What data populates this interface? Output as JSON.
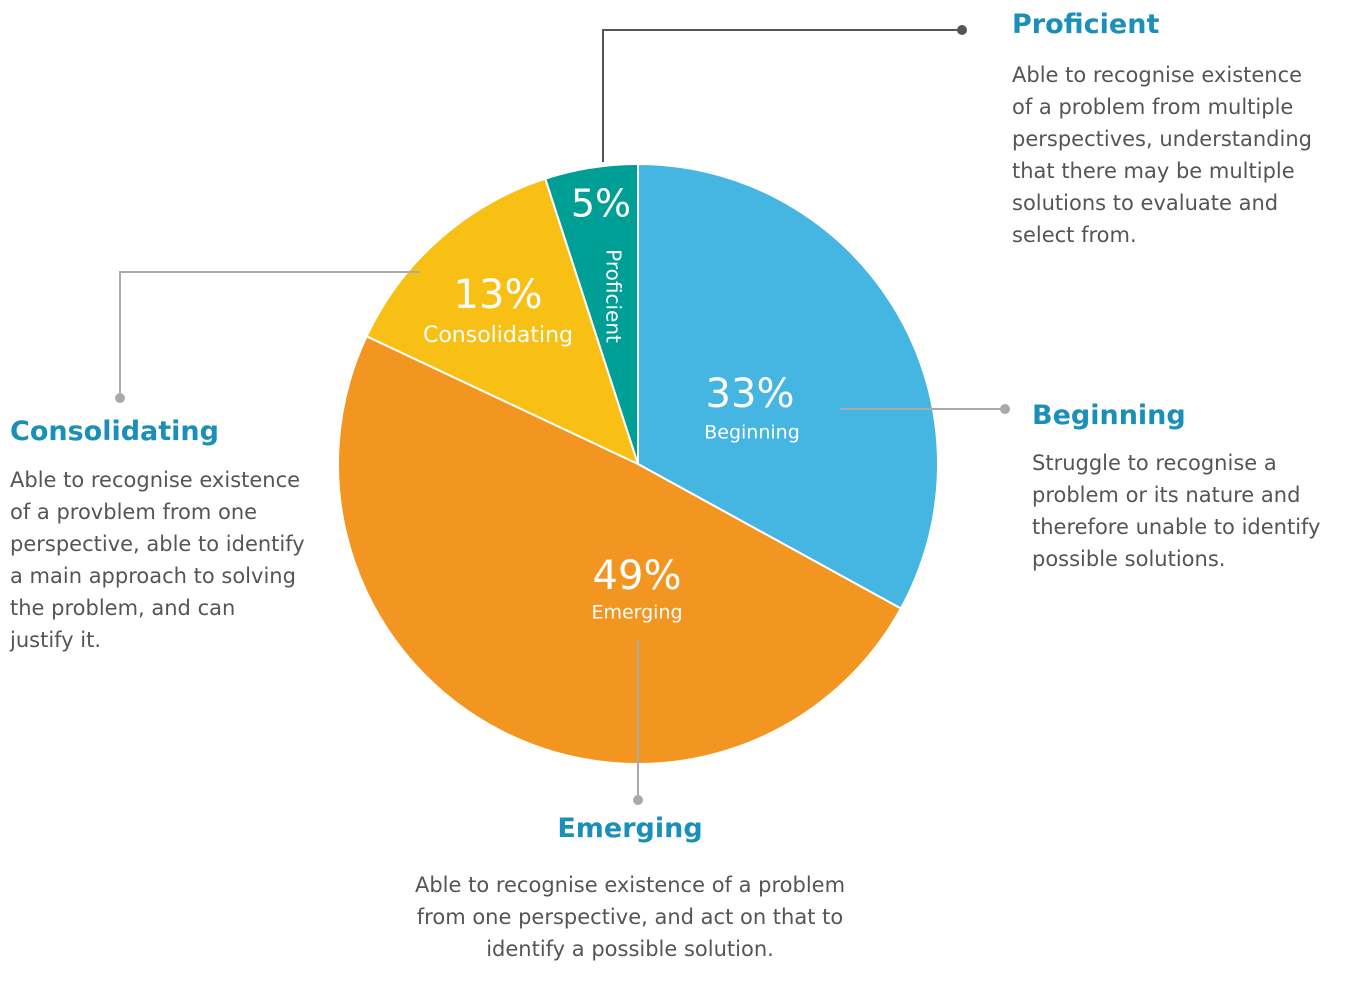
{
  "chart_data": {
    "type": "pie",
    "categories": [
      "Beginning",
      "Emerging",
      "Consolidating",
      "Proficient"
    ],
    "values": [
      33,
      49,
      13,
      5
    ],
    "value_labels": [
      "33%",
      "49%",
      "13%",
      "5%"
    ],
    "colors": [
      "#45b5e2",
      "#f39621",
      "#f8c015",
      "#009f96"
    ],
    "descriptions": [
      "Struggle to recognise a problem or its nature and therefore unable to identify possible solutions.",
      "Able to recognise existence of a problem from one perspective, and act on that to identify a possible solution.",
      "Able to recognise existence of a provblem from one perspective, able to identify a main approach to solving the problem, and can justify it.",
      "Able to recognise existence of a problem from multiple perspectives, understanding that there may be multiple solutions to evaluate and select from."
    ]
  }
}
